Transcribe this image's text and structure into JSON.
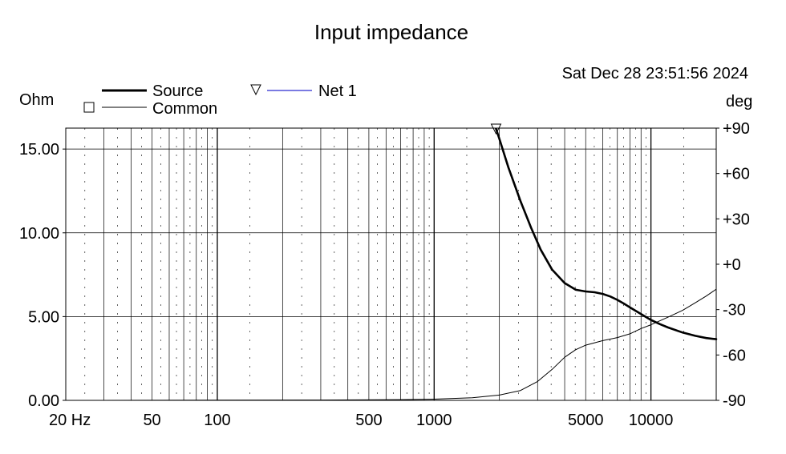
{
  "chart_data": {
    "type": "line",
    "title": "Input impedance",
    "timestamp": "Sat Dec 28 23:51:56 2024",
    "y_left_unit": "Ohm",
    "y_right_unit": "deg",
    "x_scale": "log",
    "xlim": [
      20,
      20000
    ],
    "ylim_left": [
      0,
      16.25
    ],
    "ylim_right": [
      -90,
      90
    ],
    "x_tick_labels": [
      {
        "value": 20,
        "label": "20 Hz"
      },
      {
        "value": 50,
        "label": "50"
      },
      {
        "value": 100,
        "label": "100"
      },
      {
        "value": 500,
        "label": "500"
      },
      {
        "value": 1000,
        "label": "1000"
      },
      {
        "value": 5000,
        "label": "5000"
      },
      {
        "value": 10000,
        "label": "10000"
      }
    ],
    "y_left_ticks": [
      {
        "value": 0,
        "label": "0.00"
      },
      {
        "value": 5,
        "label": "5.00"
      },
      {
        "value": 10,
        "label": "10.00"
      },
      {
        "value": 15,
        "label": "15.00"
      }
    ],
    "y_right_ticks": [
      {
        "value": 90,
        "label": "+90"
      },
      {
        "value": 60,
        "label": "+60"
      },
      {
        "value": 30,
        "label": "+30"
      },
      {
        "value": 0,
        "label": "+0"
      },
      {
        "value": -30,
        "label": "-30"
      },
      {
        "value": -60,
        "label": "-60"
      },
      {
        "value": -90,
        "label": "-90"
      }
    ],
    "legend": [
      {
        "name": "Source",
        "style": "thick",
        "color": "#000000"
      },
      {
        "name": "Common",
        "style": "thin",
        "color": "#000000",
        "marker": "square"
      },
      {
        "name": "Net 1",
        "style": "thin",
        "color": "#2a2ad0",
        "marker": "triangle-down"
      }
    ],
    "series": [
      {
        "name": "Source",
        "axis": "left",
        "points": [
          [
            1930,
            16.2
          ],
          [
            2000,
            15.6
          ],
          [
            2200,
            13.9
          ],
          [
            2500,
            11.9
          ],
          [
            2800,
            10.3
          ],
          [
            3100,
            9.0
          ],
          [
            3500,
            7.8
          ],
          [
            4000,
            7.0
          ],
          [
            4500,
            6.6
          ],
          [
            5000,
            6.5
          ],
          [
            5500,
            6.45
          ],
          [
            6000,
            6.35
          ],
          [
            6500,
            6.2
          ],
          [
            7000,
            6.0
          ],
          [
            7500,
            5.78
          ],
          [
            8000,
            5.55
          ],
          [
            9000,
            5.15
          ],
          [
            10000,
            4.8
          ],
          [
            11000,
            4.55
          ],
          [
            12000,
            4.35
          ],
          [
            14000,
            4.05
          ],
          [
            16000,
            3.85
          ],
          [
            18000,
            3.72
          ],
          [
            20000,
            3.65
          ]
        ]
      },
      {
        "name": "Common",
        "axis": "right",
        "points": [
          [
            20,
            -90
          ],
          [
            300,
            -89.8
          ],
          [
            700,
            -89.5
          ],
          [
            1000,
            -89.2
          ],
          [
            1500,
            -88.3
          ],
          [
            2000,
            -86.5
          ],
          [
            2500,
            -83.5
          ],
          [
            3000,
            -77.5
          ],
          [
            3500,
            -69.5
          ],
          [
            4000,
            -61.5
          ],
          [
            4500,
            -56.5
          ],
          [
            5000,
            -53.5
          ],
          [
            6000,
            -50.5
          ],
          [
            7000,
            -48.5
          ],
          [
            8000,
            -46
          ],
          [
            9000,
            -42.5
          ],
          [
            10000,
            -40
          ],
          [
            12000,
            -35
          ],
          [
            14000,
            -30.5
          ],
          [
            16000,
            -25.5
          ],
          [
            18000,
            -21
          ],
          [
            20000,
            -16.5
          ]
        ]
      }
    ],
    "marker": {
      "series": "Net 1",
      "x": 1930,
      "y": 16.2
    }
  }
}
